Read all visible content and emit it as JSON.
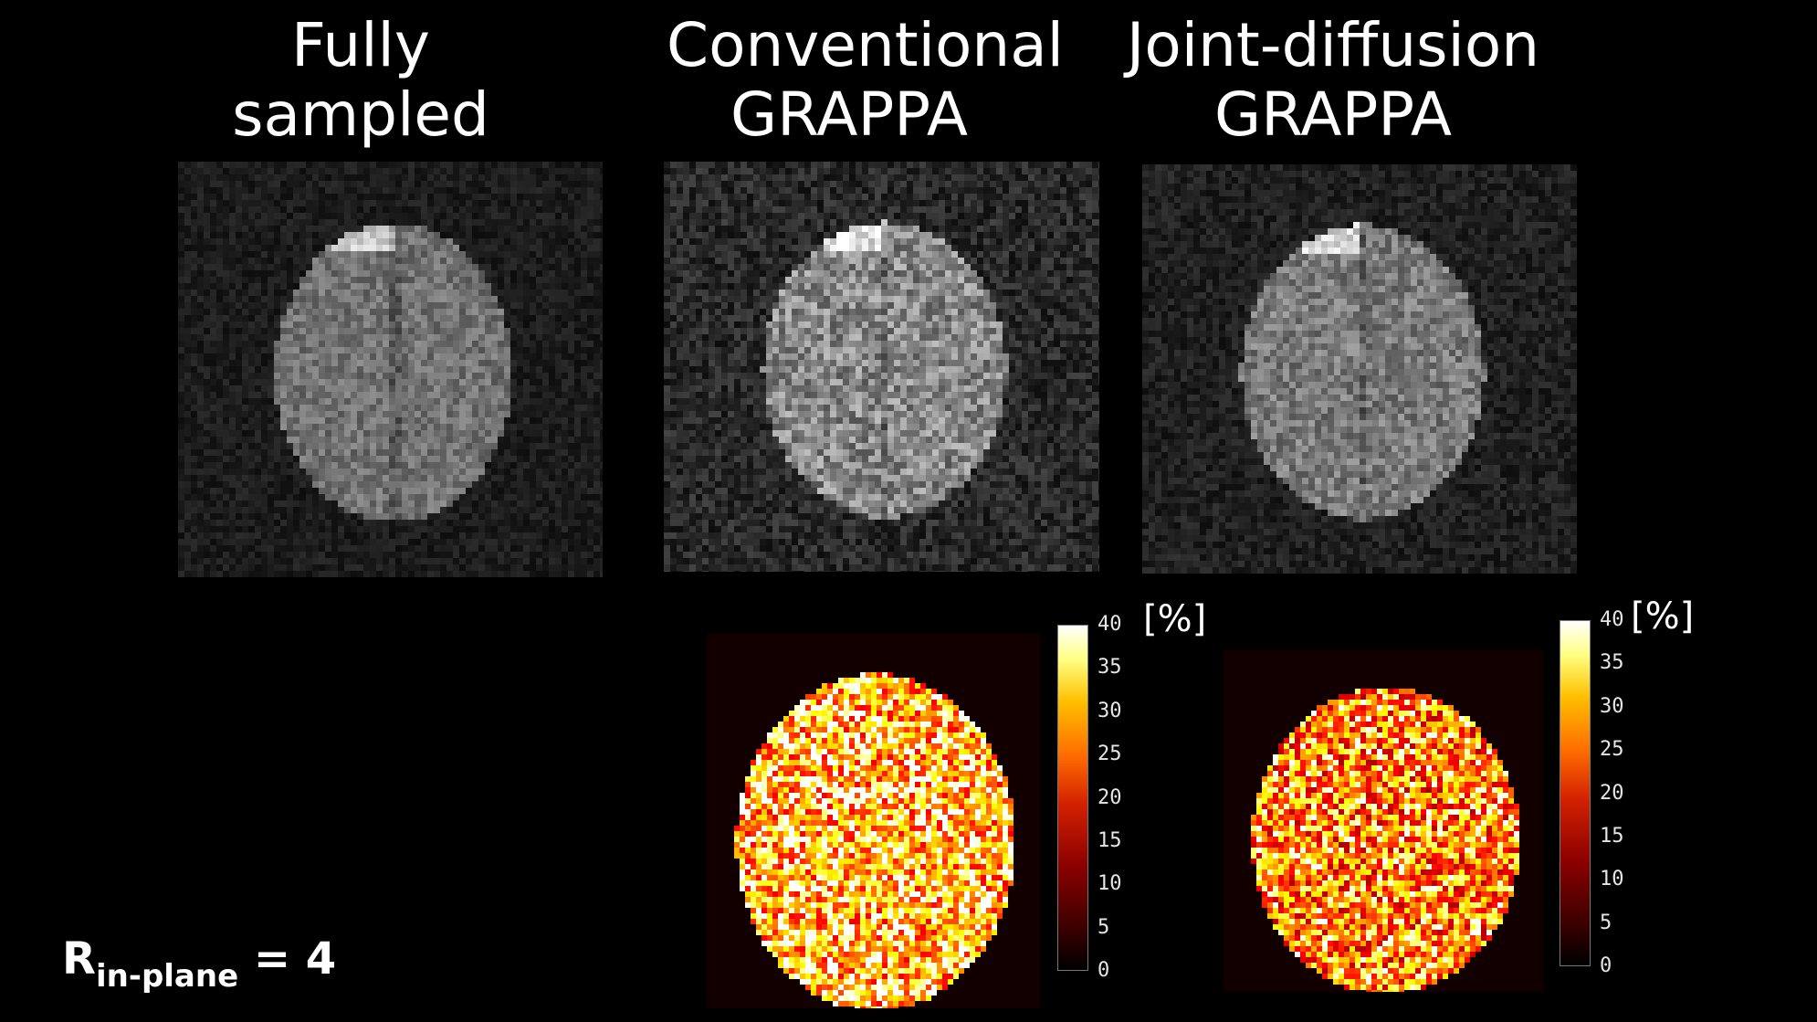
{
  "columns": [
    {
      "title_line1": "Fully",
      "title_line2": "sampled"
    },
    {
      "title_line1": "Conventional",
      "title_line2": "GRAPPA"
    },
    {
      "title_line1": "Joint-diffusion",
      "title_line2": "GRAPPA"
    }
  ],
  "colorbar": {
    "unit": "[%]",
    "ticks": [
      "40",
      "35",
      "30",
      "25",
      "20",
      "15",
      "10",
      "5",
      "0"
    ],
    "min": 0,
    "max": 40,
    "colormap": "hot"
  },
  "acceleration_label": {
    "base": "R",
    "subscript": "in-plane",
    "value": "= 4"
  }
}
